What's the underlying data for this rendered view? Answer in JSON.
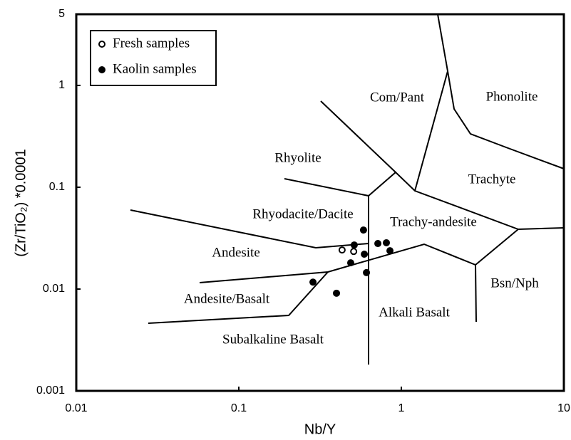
{
  "chart_data": {
    "type": "scatter",
    "log_x": true,
    "log_y": true,
    "x_label": "Nb/Y",
    "y_label": "(Zr/TiO₂) *0.0001",
    "xlim": [
      0.01,
      10
    ],
    "ylim": [
      0.001,
      5
    ],
    "xticks": [
      0.01,
      0.1,
      1,
      10
    ],
    "yticks": [
      0.001,
      0.01,
      0.1,
      1,
      5
    ],
    "legend": "upper-left",
    "series": [
      {
        "name": "Fresh samples",
        "marker": "open",
        "color": "#000000",
        "x": [
          0.432,
          0.509
        ],
        "values": [
          0.0242,
          0.0234
        ]
      },
      {
        "name": "Kaolin samples",
        "marker": "filled",
        "color": "#000000",
        "x": [
          0.585,
          0.513,
          0.717,
          0.592,
          0.809,
          0.851,
          0.488,
          0.61,
          0.286,
          0.399
        ],
        "values": [
          0.038,
          0.0271,
          0.028,
          0.022,
          0.0285,
          0.0238,
          0.0181,
          0.0145,
          0.0117,
          0.0091
        ]
      }
    ],
    "annotations": [
      "Com/Pant",
      "Phonolite",
      "Rhyolite",
      "Trachyte",
      "Rhyodacite/Dacite",
      "Trachy-andesite",
      "Andesite",
      "Bsn/Nph",
      "Andesite/Basalt",
      "Alkali Basalt",
      "Subalkaline Basalt"
    ]
  }
}
